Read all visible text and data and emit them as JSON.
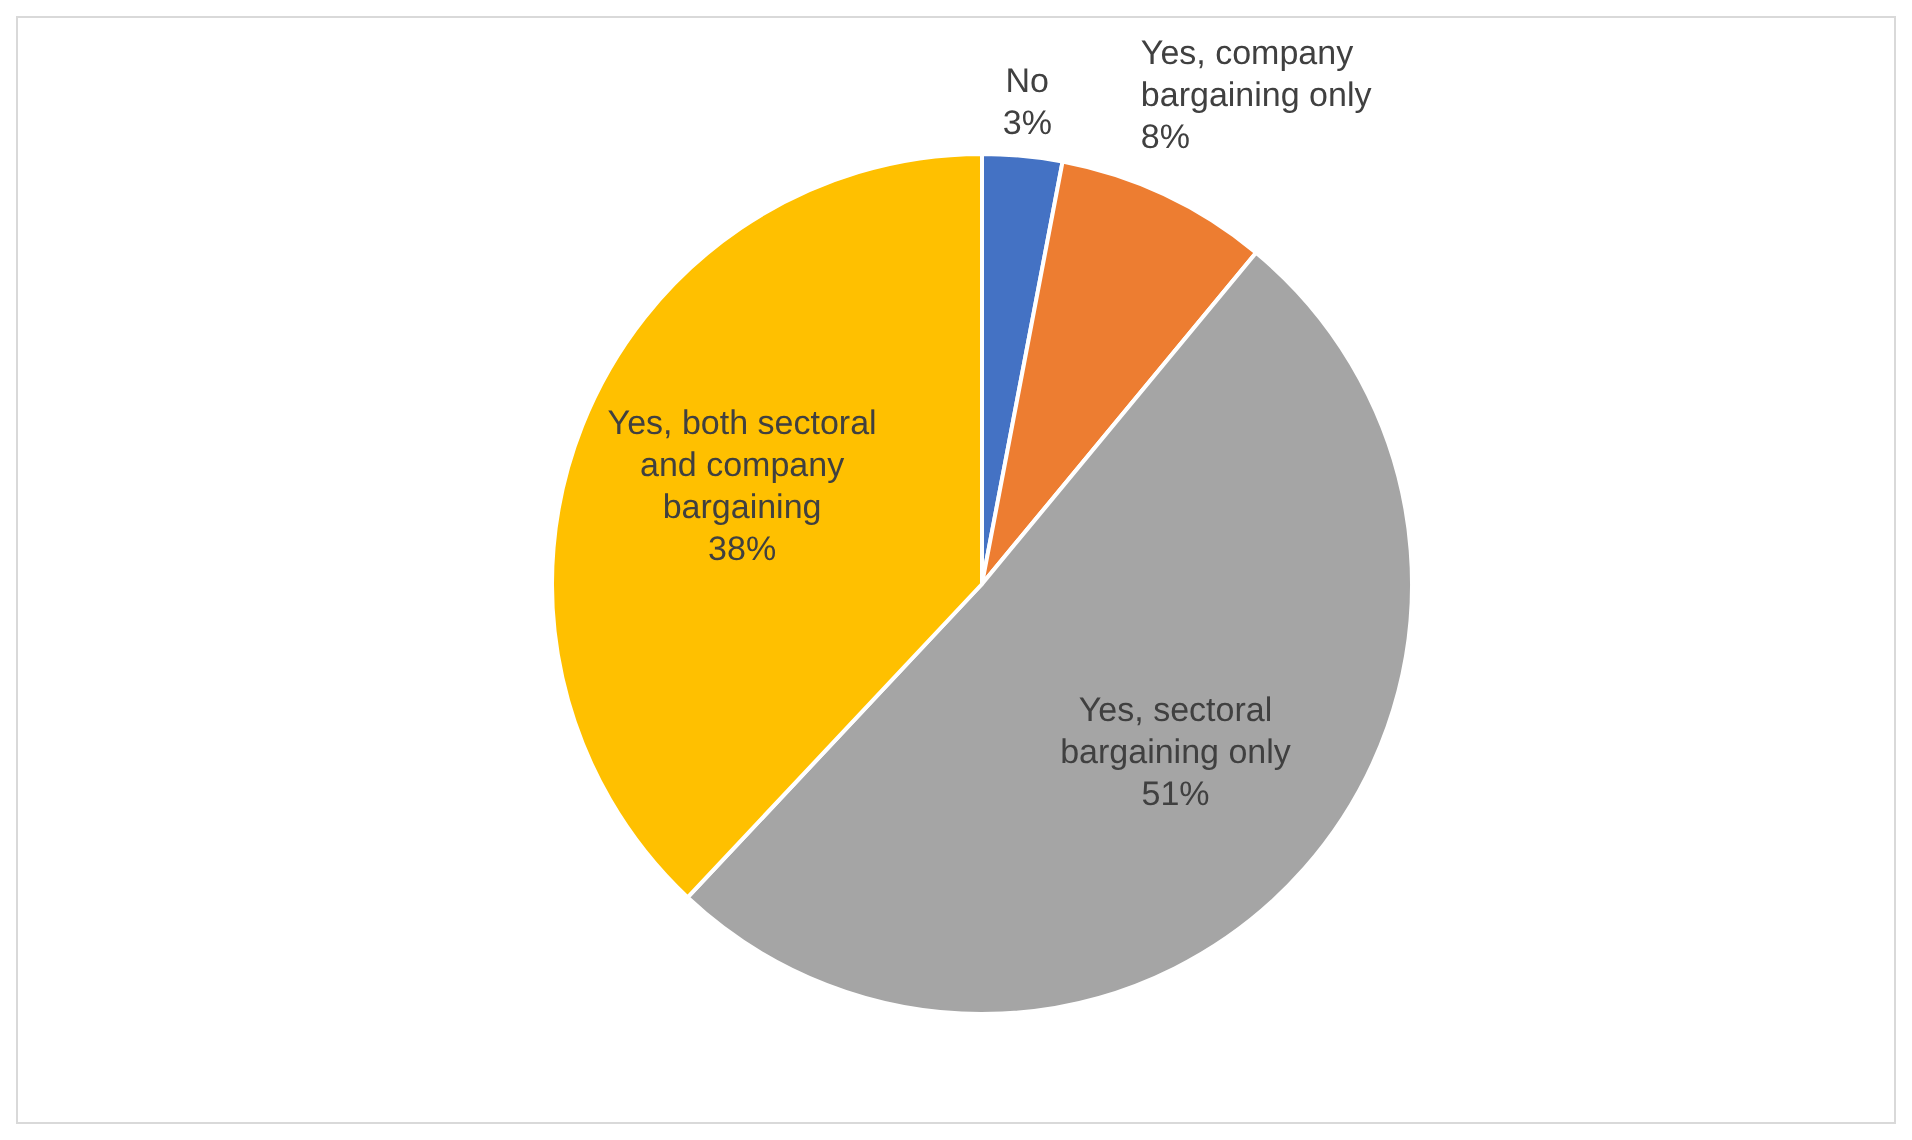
{
  "chart_data": {
    "type": "pie",
    "categories": [
      "No",
      "Yes, company bargaining only",
      "Yes, sectoral bargaining only",
      "Yes, both sectoral and company bargaining"
    ],
    "values": [
      3,
      8,
      51,
      38
    ],
    "colors": [
      "#4472c4",
      "#ed7d31",
      "#a5a5a5",
      "#ffc000"
    ],
    "value_labels": [
      "3%",
      "8%",
      "51%",
      "38%"
    ],
    "legend": false
  }
}
